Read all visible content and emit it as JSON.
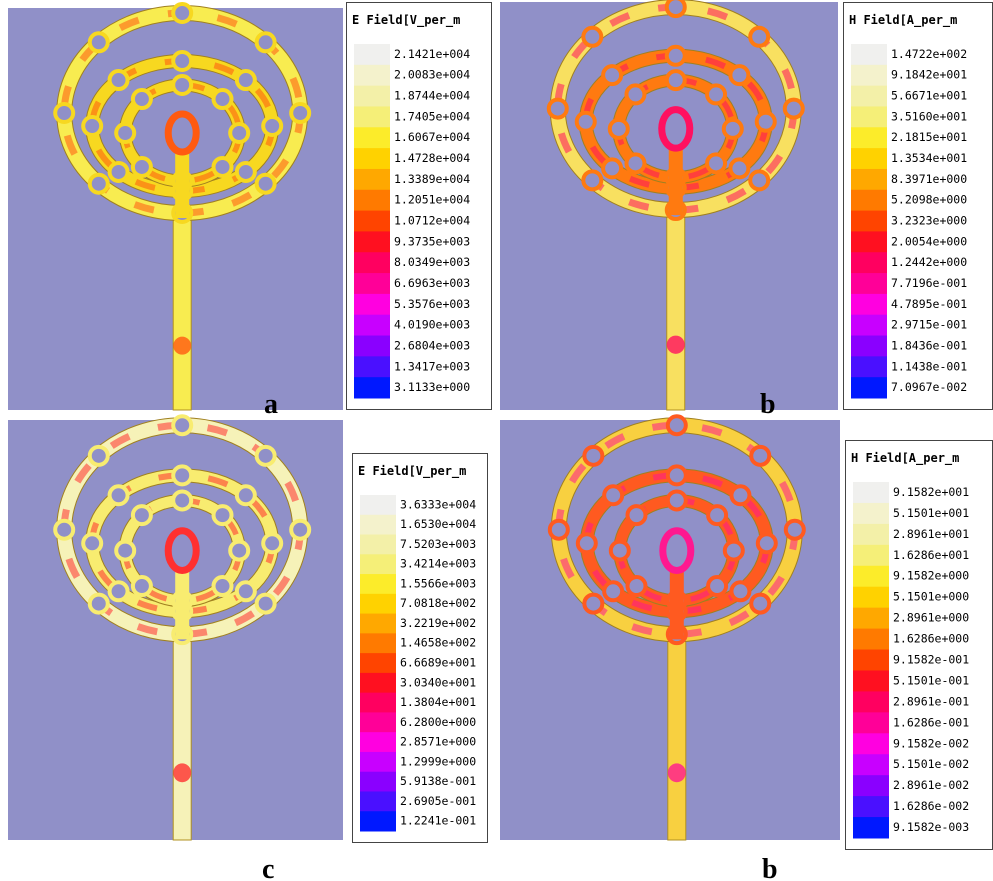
{
  "panels": [
    {
      "legend": {
        "title": "E Field[V_per_m",
        "labels": [
          "2.1421e+004",
          "2.0083e+004",
          "1.8744e+004",
          "1.7405e+004",
          "1.6067e+004",
          "1.4728e+004",
          "1.3389e+004",
          "1.2051e+004",
          "1.0712e+004",
          "9.3735e+003",
          "8.0349e+003",
          "6.6963e+003",
          "5.3576e+003",
          "4.0190e+003",
          "2.6804e+003",
          "1.3417e+003",
          "3.1133e+000"
        ]
      },
      "caption": "a"
    },
    {
      "legend": {
        "title": "H Field[A_per_m",
        "labels": [
          "1.4722e+002",
          "9.1842e+001",
          "5.6671e+001",
          "3.5160e+001",
          "2.1815e+001",
          "1.3534e+001",
          "8.3971e+000",
          "5.2098e+000",
          "3.2323e+000",
          "2.0054e+000",
          "1.2442e+000",
          "7.7196e-001",
          "4.7895e-001",
          "2.9715e-001",
          "1.8436e-001",
          "1.1438e-001",
          "7.0967e-002"
        ]
      },
      "caption": "b"
    },
    {
      "legend": {
        "title": "E Field[V_per_m",
        "labels": [
          "3.6333e+004",
          "1.6530e+004",
          "7.5203e+003",
          "3.4214e+003",
          "1.5566e+003",
          "7.0818e+002",
          "3.2219e+002",
          "1.4658e+002",
          "6.6689e+001",
          "3.0340e+001",
          "1.3804e+001",
          "6.2800e+000",
          "2.8571e+000",
          "1.2999e+000",
          "5.9138e-001",
          "2.6905e-001",
          "1.2241e-001"
        ]
      },
      "caption": "c"
    },
    {
      "legend": {
        "title": "H Field[A_per_m",
        "labels": [
          "9.1582e+001",
          "5.1501e+001",
          "2.8961e+001",
          "1.6286e+001",
          "9.1582e+000",
          "5.1501e+000",
          "2.8961e+000",
          "1.6286e+000",
          "9.1582e-001",
          "5.1501e-001",
          "2.8961e-001",
          "1.6286e-001",
          "9.1582e-002",
          "5.1501e-002",
          "2.8961e-002",
          "1.6286e-002",
          "9.1582e-003"
        ]
      },
      "caption": "b"
    }
  ]
}
